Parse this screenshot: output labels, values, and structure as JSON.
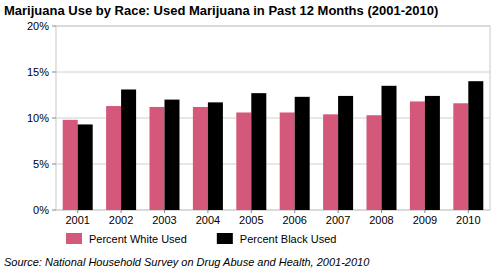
{
  "chart_data": {
    "type": "bar",
    "title": "Marijuana Use by Race: Used Marijuana in Past 12 Months (2001-2010)",
    "categories": [
      "2001",
      "2002",
      "2003",
      "2004",
      "2005",
      "2006",
      "2007",
      "2008",
      "2009",
      "2010"
    ],
    "series": [
      {
        "name": "Percent White Used",
        "color": "#d4587a",
        "values": [
          9.8,
          11.3,
          11.2,
          11.2,
          10.6,
          10.6,
          10.4,
          10.3,
          11.8,
          11.6
        ]
      },
      {
        "name": "Percent Black Used",
        "color": "#000000",
        "values": [
          9.3,
          13.1,
          12.0,
          11.7,
          12.7,
          12.3,
          12.4,
          13.5,
          12.4,
          14.0
        ]
      }
    ],
    "ylim": [
      0,
      20
    ],
    "yticks": [
      {
        "value": 0,
        "label": "0%"
      },
      {
        "value": 5,
        "label": "5%"
      },
      {
        "value": 10,
        "label": "10%"
      },
      {
        "value": 15,
        "label": "15%"
      },
      {
        "value": 20,
        "label": "20%"
      }
    ],
    "grid": true,
    "legend": "bottom",
    "annotations": [
      "Source: National Household Survey on Drug Abuse and Health, 2001-2010"
    ]
  }
}
